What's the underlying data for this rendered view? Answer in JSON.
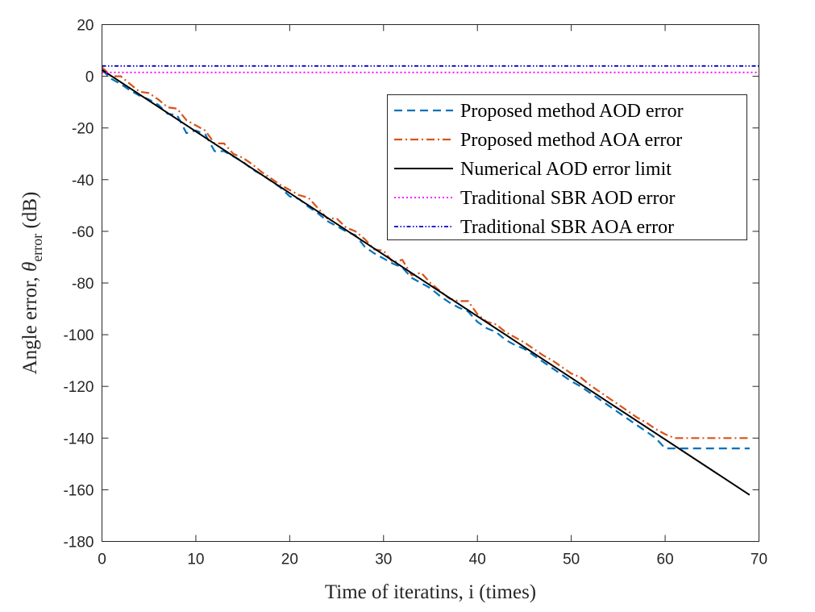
{
  "chart_data": {
    "type": "line",
    "title": "",
    "xlabel": "Time of iteratins, i (times)",
    "ylabel": {
      "prefix": "Angle error, ",
      "symbol": "θ",
      "subscript": "error",
      "suffix": " (dB)"
    },
    "xlim": [
      0,
      70
    ],
    "ylim": [
      -180,
      20
    ],
    "xticks": [
      0,
      10,
      20,
      30,
      40,
      50,
      60,
      70
    ],
    "yticks": [
      20,
      0,
      -20,
      -40,
      -60,
      -80,
      -100,
      -120,
      -140,
      -160,
      -180
    ],
    "grid": false,
    "legend_position": "upper-right",
    "series": [
      {
        "name": "Proposed method AOD error",
        "color": "#0072BD",
        "style": "dashed",
        "points": [
          [
            0,
            2.5
          ],
          [
            1,
            -1
          ],
          [
            2,
            -3
          ],
          [
            3,
            -5.5
          ],
          [
            4,
            -7.5
          ],
          [
            5,
            -9
          ],
          [
            6,
            -11
          ],
          [
            7,
            -14.5
          ],
          [
            8,
            -15
          ],
          [
            9,
            -22
          ],
          [
            10,
            -21
          ],
          [
            11,
            -22.5
          ],
          [
            12,
            -29
          ],
          [
            13,
            -29
          ],
          [
            14,
            -31
          ],
          [
            15,
            -33
          ],
          [
            16,
            -36
          ],
          [
            17,
            -38
          ],
          [
            18,
            -40.5
          ],
          [
            19,
            -43
          ],
          [
            20,
            -46.5
          ],
          [
            21,
            -47.5
          ],
          [
            22,
            -50.5
          ],
          [
            23,
            -53
          ],
          [
            24,
            -56
          ],
          [
            25,
            -58
          ],
          [
            26,
            -60
          ],
          [
            27,
            -61.5
          ],
          [
            28,
            -66
          ],
          [
            29,
            -68.5
          ],
          [
            30,
            -70.5
          ],
          [
            31,
            -72.5
          ],
          [
            32,
            -74
          ],
          [
            33,
            -78
          ],
          [
            34,
            -80
          ],
          [
            35,
            -82
          ],
          [
            36,
            -85
          ],
          [
            37,
            -87.5
          ],
          [
            38,
            -89.5
          ],
          [
            39,
            -91
          ],
          [
            40,
            -95
          ],
          [
            41,
            -97.5
          ],
          [
            42,
            -99
          ],
          [
            43,
            -102
          ],
          [
            44,
            -104
          ],
          [
            45,
            -105.5
          ],
          [
            46,
            -108
          ],
          [
            47,
            -110.5
          ],
          [
            48,
            -113
          ],
          [
            49,
            -115.5
          ],
          [
            50,
            -118
          ],
          [
            51,
            -120
          ],
          [
            52,
            -122.5
          ],
          [
            53,
            -125
          ],
          [
            54,
            -127.5
          ],
          [
            55,
            -130
          ],
          [
            56,
            -132.5
          ],
          [
            57,
            -135
          ],
          [
            58,
            -137.5
          ],
          [
            59,
            -140
          ],
          [
            60,
            -144
          ],
          [
            61,
            -144
          ],
          [
            65,
            -144
          ],
          [
            69,
            -144
          ]
        ]
      },
      {
        "name": "Proposed method AOA error",
        "color": "#D95319",
        "style": "dashdot",
        "points": [
          [
            0,
            3.5
          ],
          [
            1,
            0
          ],
          [
            2,
            0
          ],
          [
            3,
            -3
          ],
          [
            4,
            -6
          ],
          [
            5,
            -6.5
          ],
          [
            6,
            -9
          ],
          [
            7,
            -12
          ],
          [
            8,
            -12.5
          ],
          [
            9,
            -17
          ],
          [
            10,
            -19
          ],
          [
            11,
            -21
          ],
          [
            12,
            -26
          ],
          [
            13,
            -26
          ],
          [
            14,
            -30
          ],
          [
            15,
            -31.5
          ],
          [
            16,
            -34
          ],
          [
            17,
            -37
          ],
          [
            18,
            -39.5
          ],
          [
            19,
            -42
          ],
          [
            20,
            -44
          ],
          [
            21,
            -46
          ],
          [
            22,
            -47
          ],
          [
            23,
            -51
          ],
          [
            24,
            -55
          ],
          [
            25,
            -55
          ],
          [
            26,
            -58.5
          ],
          [
            27,
            -60
          ],
          [
            28,
            -63
          ],
          [
            29,
            -67
          ],
          [
            30,
            -67.5
          ],
          [
            31,
            -72
          ],
          [
            32,
            -71
          ],
          [
            33,
            -77
          ],
          [
            34,
            -76
          ],
          [
            35,
            -80
          ],
          [
            36,
            -83
          ],
          [
            37,
            -86
          ],
          [
            38,
            -87
          ],
          [
            39,
            -87
          ],
          [
            40,
            -92
          ],
          [
            41,
            -95
          ],
          [
            42,
            -96
          ],
          [
            43,
            -99
          ],
          [
            44,
            -101
          ],
          [
            45,
            -103
          ],
          [
            46,
            -105.5
          ],
          [
            47,
            -108
          ],
          [
            48,
            -110
          ],
          [
            49,
            -112.5
          ],
          [
            50,
            -115
          ],
          [
            51,
            -116.5
          ],
          [
            52,
            -119.5
          ],
          [
            53,
            -122
          ],
          [
            54,
            -124.5
          ],
          [
            55,
            -127
          ],
          [
            56,
            -129.5
          ],
          [
            57,
            -132
          ],
          [
            58,
            -134
          ],
          [
            59,
            -136.5
          ],
          [
            60,
            -138.5
          ],
          [
            61,
            -140
          ],
          [
            65,
            -140
          ],
          [
            69,
            -140
          ]
        ]
      },
      {
        "name": "Numerical AOD error limit",
        "color": "#000000",
        "style": "solid",
        "points": [
          [
            0,
            2.5
          ],
          [
            69,
            -162
          ]
        ]
      },
      {
        "name": "Traditional SBR AOD error",
        "color": "#FF00FF",
        "style": "dotted",
        "points": [
          [
            0,
            1.5
          ],
          [
            70,
            1.5
          ]
        ]
      },
      {
        "name": "Traditional SBR AOA error",
        "color": "#0000CC",
        "style": "dashdotdot",
        "points": [
          [
            0,
            4
          ],
          [
            70,
            4
          ]
        ]
      }
    ]
  }
}
